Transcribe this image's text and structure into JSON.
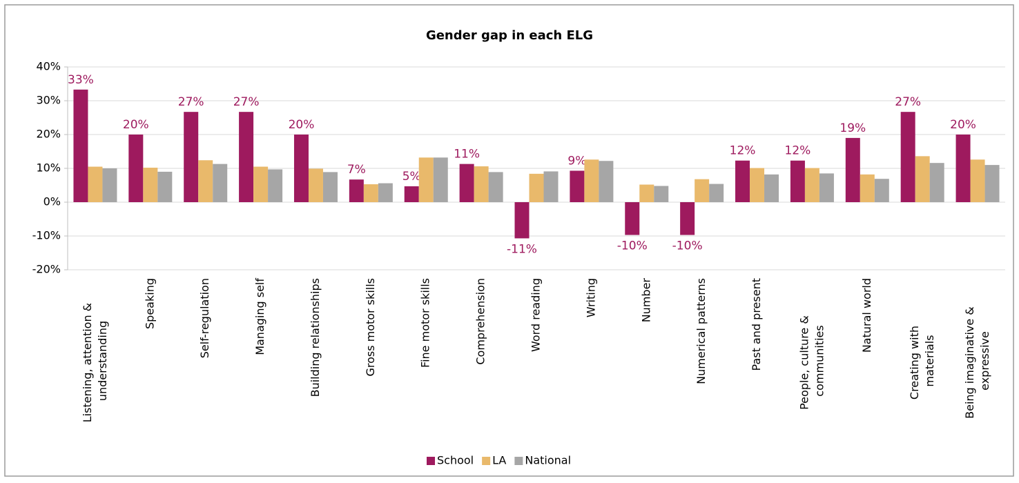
{
  "chart_data": {
    "type": "bar",
    "title": "Gender gap in each ELG",
    "categories": [
      "Listening, attention & understanding",
      "Speaking",
      "Self-regulation",
      "Managing self",
      "Building relationships",
      "Gross motor skills",
      "Fine motor skills",
      "Comprehension",
      "Word reading",
      "Writing",
      "Number",
      "Numerical patterns",
      "Past and present",
      "People, culture & communities",
      "Natural world",
      "Creating with materials",
      "Being imaginative & expressive"
    ],
    "series": [
      {
        "name": "School",
        "color": "#9e1a5e",
        "values": [
          33.3,
          20,
          26.7,
          26.7,
          20,
          6.7,
          4.7,
          11.3,
          -10.7,
          9.3,
          -9.7,
          -9.7,
          12.3,
          12.3,
          19,
          26.7,
          20
        ],
        "value_labels": [
          "33%",
          "20%",
          "27%",
          "27%",
          "20%",
          "7%",
          "5%",
          "11%",
          "-11%",
          "9%",
          "-10%",
          "-10%",
          "12%",
          "12%",
          "19%",
          "27%",
          "20%"
        ]
      },
      {
        "name": "LA",
        "color": "#e9b96b",
        "values": [
          10.5,
          10.2,
          12.4,
          10.5,
          9.9,
          5.3,
          13.2,
          10.6,
          8.4,
          12.6,
          5.2,
          6.8,
          10.1,
          10.1,
          8.2,
          13.6,
          12.6
        ]
      },
      {
        "name": "National",
        "color": "#a6a6a6",
        "values": [
          10,
          9,
          11.3,
          9.7,
          8.9,
          5.6,
          13.2,
          8.9,
          9.1,
          12.2,
          4.8,
          5.4,
          8.2,
          8.5,
          6.9,
          11.6,
          11
        ]
      }
    ],
    "ylim": [
      -20,
      40
    ],
    "yticks": [
      {
        "value": -20,
        "label": "-20%"
      },
      {
        "value": -10,
        "label": "-10%"
      },
      {
        "value": 0,
        "label": "0%"
      },
      {
        "value": 10,
        "label": "10%"
      },
      {
        "value": 20,
        "label": "20%"
      },
      {
        "value": 30,
        "label": "30%"
      },
      {
        "value": 40,
        "label": "40%"
      }
    ],
    "grid": true,
    "legend": "bottom"
  }
}
